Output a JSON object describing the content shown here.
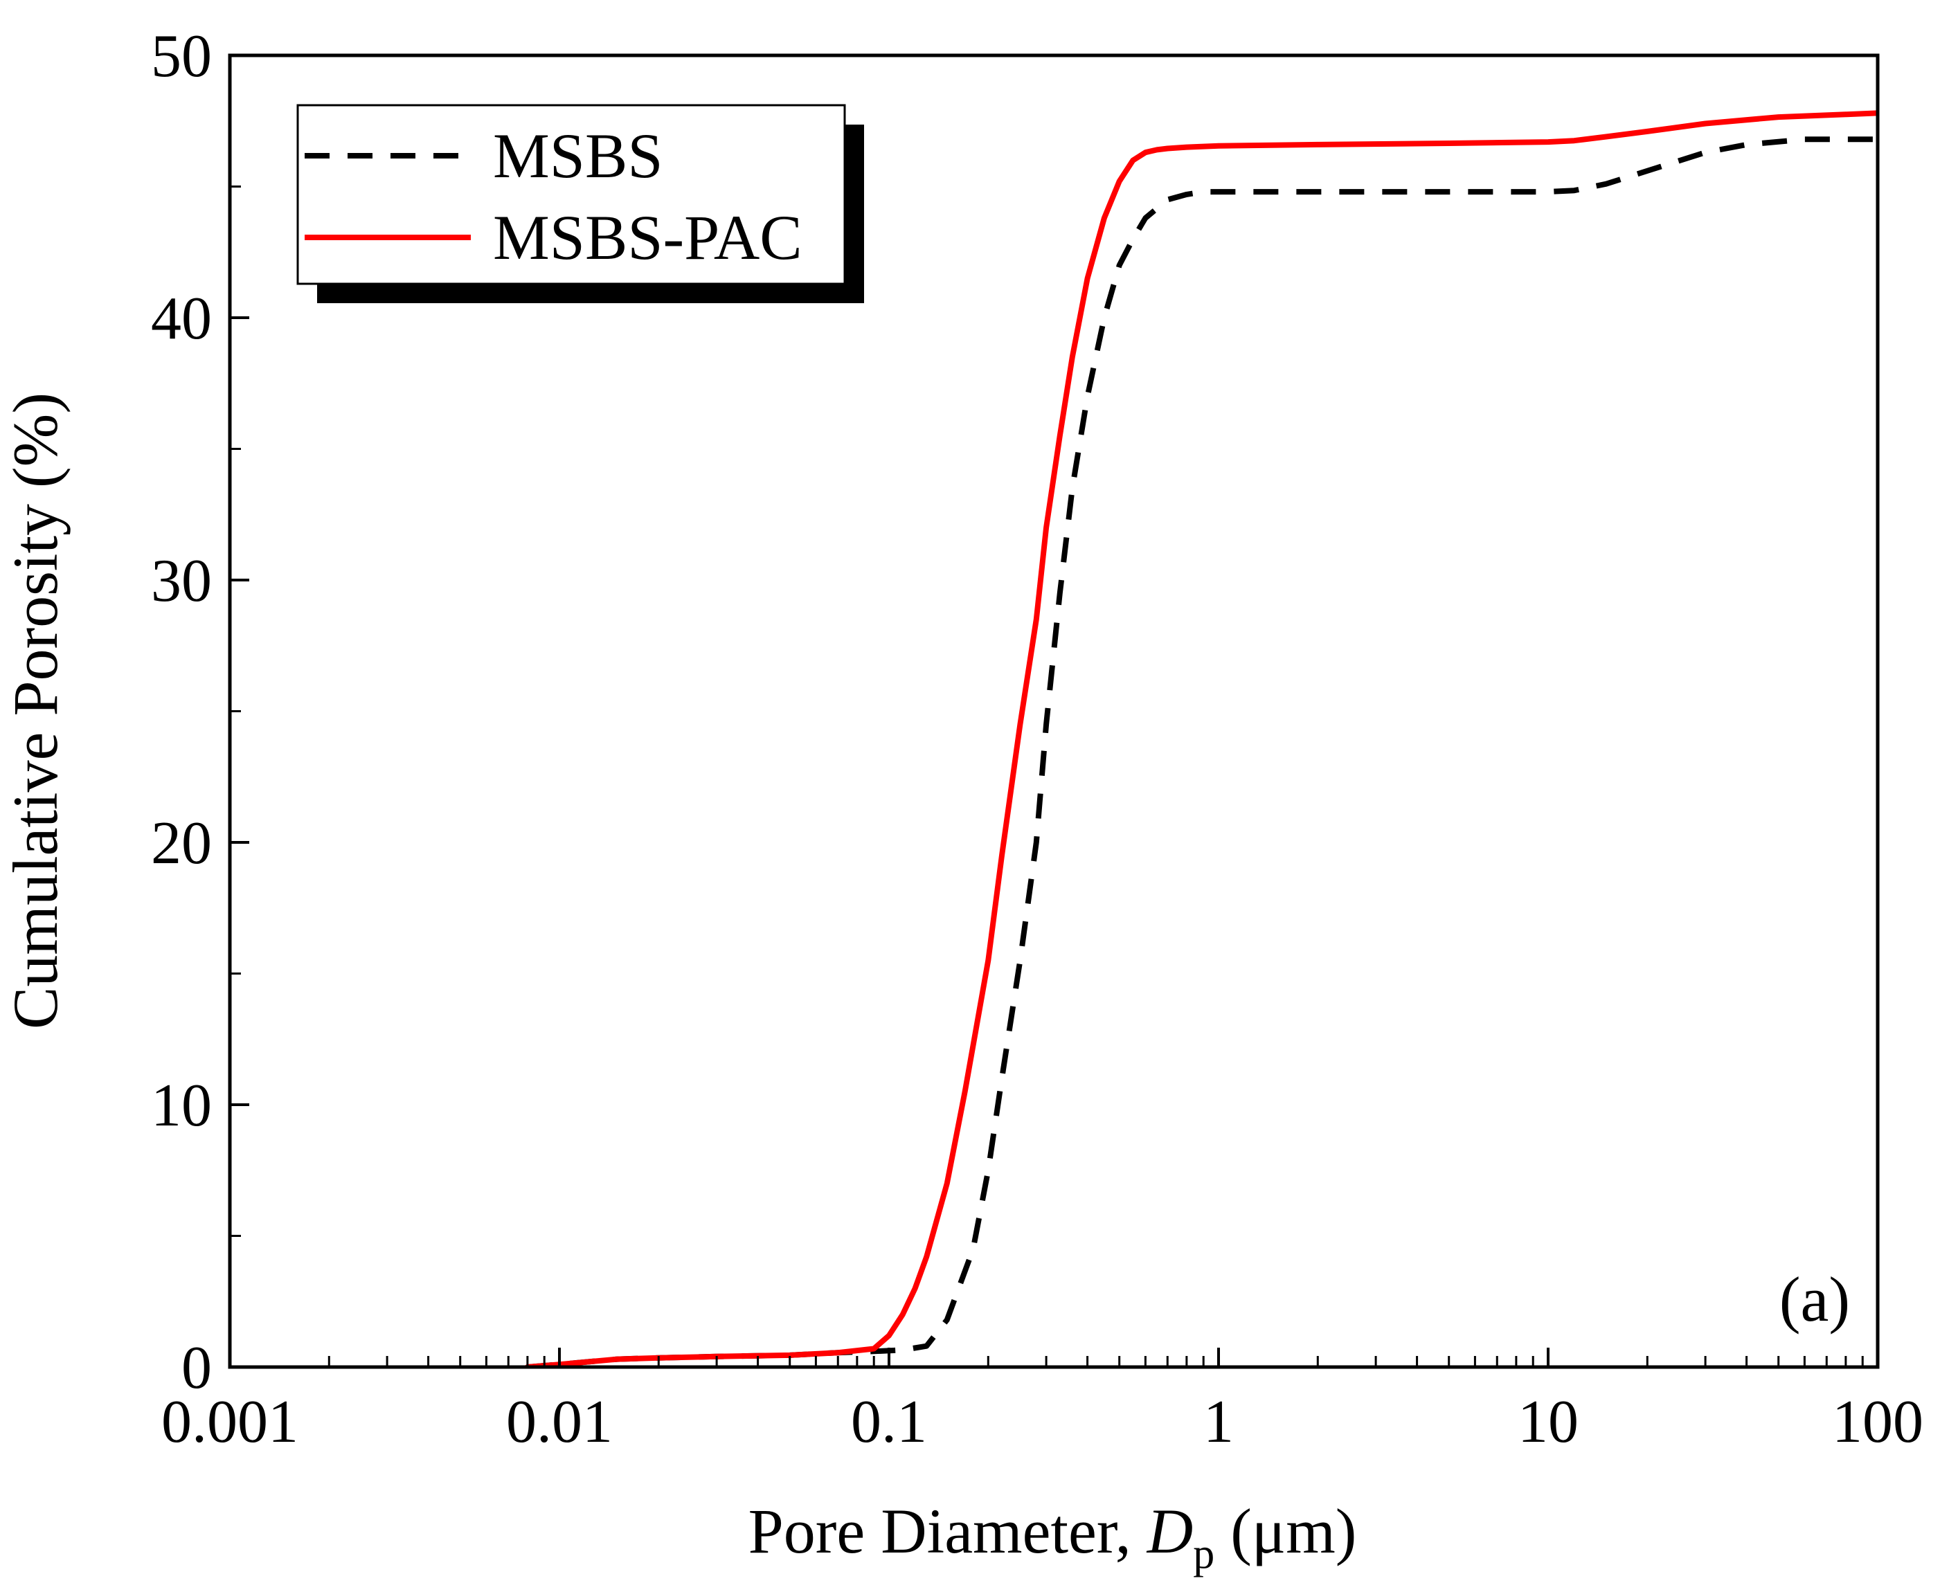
{
  "chart_data": {
    "type": "line",
    "title": "",
    "xlabel": {
      "prefix": "Pore Diameter, ",
      "symbol": "D",
      "subscript": "p",
      "suffix": " (μm)"
    },
    "ylabel": "Cumulative Porosity (%)",
    "xscale": "log",
    "xlim": [
      0.001,
      100
    ],
    "ylim": [
      0,
      50
    ],
    "xticks": [
      0.001,
      0.01,
      0.1,
      1,
      10,
      100
    ],
    "xtick_labels": [
      "0.001",
      "0.01",
      "0.1",
      "1",
      "10",
      "100"
    ],
    "yticks": [
      0,
      10,
      20,
      30,
      40,
      50
    ],
    "ytick_labels": [
      "0",
      "10",
      "20",
      "30",
      "40",
      "50"
    ],
    "yminor_step": 5,
    "grid": false,
    "legend_position": "top-left",
    "annotation": "(a)",
    "series": [
      {
        "name": "MSBS",
        "color": "#000000",
        "style": "dashed",
        "x": [
          0.008,
          0.01,
          0.015,
          0.02,
          0.03,
          0.05,
          0.07,
          0.09,
          0.11,
          0.13,
          0.15,
          0.18,
          0.2,
          0.22,
          0.25,
          0.28,
          0.3,
          0.33,
          0.36,
          0.4,
          0.45,
          0.5,
          0.55,
          0.6,
          0.7,
          0.8,
          0.9,
          1,
          2,
          5,
          10,
          12,
          15,
          20,
          30,
          40,
          60,
          100
        ],
        "y": [
          0,
          0.1,
          0.3,
          0.35,
          0.4,
          0.45,
          0.55,
          0.6,
          0.65,
          0.8,
          1.8,
          4.5,
          7.5,
          11,
          15.5,
          20,
          24.5,
          29.5,
          33.5,
          37,
          40,
          42,
          43,
          43.8,
          44.5,
          44.7,
          44.8,
          44.8,
          44.8,
          44.8,
          44.8,
          44.85,
          45.1,
          45.6,
          46.3,
          46.6,
          46.8,
          46.8
        ]
      },
      {
        "name": "MSBS-PAC",
        "color": "#ff0000",
        "style": "solid",
        "x": [
          0.008,
          0.01,
          0.015,
          0.02,
          0.03,
          0.05,
          0.07,
          0.09,
          0.1,
          0.11,
          0.12,
          0.13,
          0.15,
          0.17,
          0.2,
          0.22,
          0.25,
          0.28,
          0.3,
          0.33,
          0.36,
          0.4,
          0.45,
          0.5,
          0.55,
          0.6,
          0.65,
          0.7,
          0.8,
          1,
          2,
          5,
          10,
          12,
          15,
          20,
          30,
          50,
          80,
          100
        ],
        "y": [
          0,
          0.1,
          0.3,
          0.35,
          0.4,
          0.45,
          0.55,
          0.7,
          1.2,
          2,
          3,
          4.2,
          7,
          10.5,
          15.5,
          19.5,
          24.5,
          28.5,
          32,
          35.5,
          38.5,
          41.5,
          43.8,
          45.2,
          46,
          46.3,
          46.4,
          46.45,
          46.5,
          46.55,
          46.6,
          46.65,
          46.7,
          46.75,
          46.9,
          47.1,
          47.4,
          47.65,
          47.75,
          47.8
        ]
      }
    ]
  }
}
